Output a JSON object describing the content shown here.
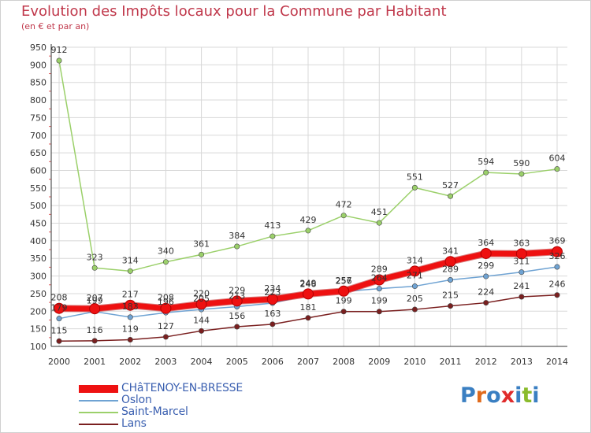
{
  "title": "Evolution des Impôts locaux pour la Commune par Habitant",
  "subtitle": "(en € et par an)",
  "logo_text": "Proxiti",
  "colors": {
    "title": "#c0384b",
    "grid": "#d4d4d4",
    "axis": "#333333",
    "legend_text": "#3a5fb0",
    "logo": [
      "#3a7fc2",
      "#e06a1c",
      "#3a7fc2",
      "#e02b2b",
      "#3a7fc2",
      "#8abb2c",
      "#3a7fc2"
    ]
  },
  "chart_data": {
    "type": "line",
    "title": "Evolution des Impôts locaux pour la Commune par Habitant",
    "subtitle": "(en € et par an)",
    "xlabel": "",
    "ylabel": "",
    "x": [
      2000,
      2001,
      2002,
      2003,
      2004,
      2005,
      2006,
      2007,
      2008,
      2009,
      2010,
      2011,
      2012,
      2013,
      2014
    ],
    "ylim": [
      100,
      950
    ],
    "yticks": [
      100,
      150,
      200,
      250,
      300,
      350,
      400,
      450,
      500,
      550,
      600,
      650,
      700,
      750,
      800,
      850,
      900,
      950
    ],
    "grid": true,
    "legend_position": "bottom-left",
    "series": [
      {
        "name": "Lans",
        "color": "#7a1f1f",
        "values": [
          115,
          116,
          119,
          127,
          144,
          156,
          163,
          181,
          199,
          199,
          205,
          215,
          224,
          241,
          246
        ],
        "labels": [
          "115",
          "116",
          "119",
          "127",
          "144",
          "156",
          "163",
          "181",
          "199",
          "199",
          "205",
          "215",
          "224",
          "241",
          "246"
        ]
      },
      {
        "name": "Saint-Marcel",
        "color": "#9bd06a",
        "values": [
          912,
          323,
          314,
          340,
          361,
          384,
          413,
          429,
          472,
          451,
          551,
          527,
          594,
          590,
          604
        ],
        "labels": [
          "912",
          "323",
          "314",
          "340",
          "361",
          "384",
          "413",
          "429",
          "472",
          "451",
          "551",
          "527",
          "594",
          "590",
          "604"
        ]
      },
      {
        "name": "Oslon",
        "color": "#6fa3d3",
        "values": [
          179,
          199,
          183,
          196,
          205,
          213,
          223,
          246,
          256,
          264,
          271,
          289,
          299,
          311,
          326
        ],
        "labels": [
          "179",
          "199",
          "183",
          "196",
          "205",
          "213",
          "223",
          "246",
          "256",
          "264",
          "271",
          "289",
          "299",
          "311",
          "326"
        ]
      },
      {
        "name": "CHâTENOY-EN-BRESSE",
        "color": "#ee1111",
        "values": [
          208,
          207,
          217,
          208,
          220,
          229,
          234,
          249,
          257,
          289,
          314,
          341,
          364,
          363,
          369
        ],
        "labels": [
          "208",
          "207",
          "217",
          "208",
          "220",
          "229",
          "234",
          "249",
          "257",
          "289",
          "314",
          "341",
          "364",
          "363",
          "369"
        ]
      }
    ],
    "legend_order": [
      "CHâTENOY-EN-BRESSE",
      "Oslon",
      "Saint-Marcel",
      "Lans"
    ]
  }
}
